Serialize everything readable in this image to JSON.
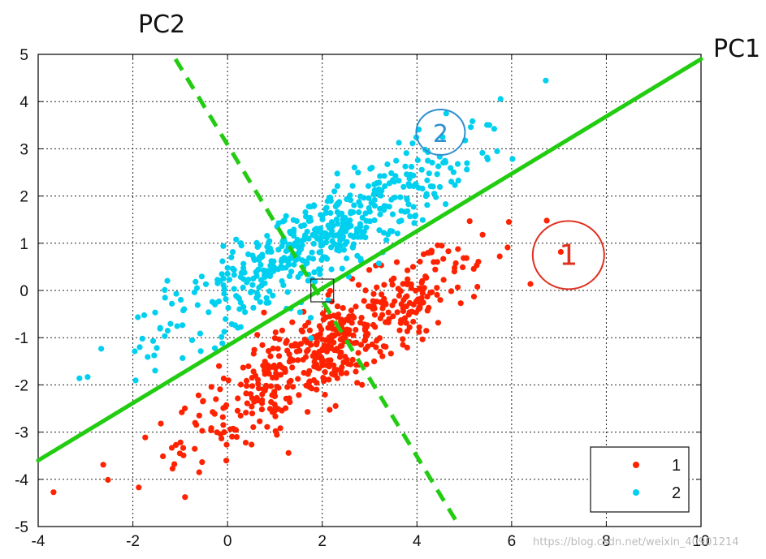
{
  "chart_data": {
    "type": "scatter",
    "xlim": [
      -4,
      10
    ],
    "ylim": [
      -5,
      5
    ],
    "x_ticks": [
      -4,
      -2,
      0,
      2,
      4,
      6,
      8,
      10
    ],
    "y_ticks": [
      -5,
      -4,
      -3,
      -2,
      -1,
      0,
      1,
      2,
      3,
      4,
      5
    ],
    "grid": true,
    "legend_position": "bottom-right",
    "series": [
      {
        "name": "1",
        "color": "#ff2200",
        "center": [
          2.2,
          -1.2
        ],
        "spread_major": 1.9,
        "spread_minor": 0.42,
        "angle_slope": 0.62,
        "count": 520
      },
      {
        "name": "2",
        "color": "#00d0f0",
        "center": [
          1.8,
          1.0
        ],
        "spread_major": 1.9,
        "spread_minor": 0.42,
        "angle_slope": 0.62,
        "count": 520
      }
    ],
    "lines": [
      {
        "label": "PC1",
        "color": "#22cc11",
        "style": "solid",
        "from": [
          -4,
          -3.6
        ],
        "to": [
          10,
          4.9
        ]
      },
      {
        "label": "PC2",
        "color": "#22cc11",
        "style": "dashed",
        "from": [
          -1.1,
          4.9
        ],
        "to": [
          4.9,
          -5
        ]
      }
    ],
    "annotations": [
      {
        "text": "1",
        "color": "#e03020",
        "at": [
          7.2,
          0.75
        ]
      },
      {
        "text": "2",
        "color": "#2f8fd0",
        "at": [
          4.5,
          3.35
        ]
      }
    ],
    "mean_marker": [
      2.0,
      0.0
    ],
    "watermark": "https://blog.csdn.net/weixin_40901214"
  }
}
